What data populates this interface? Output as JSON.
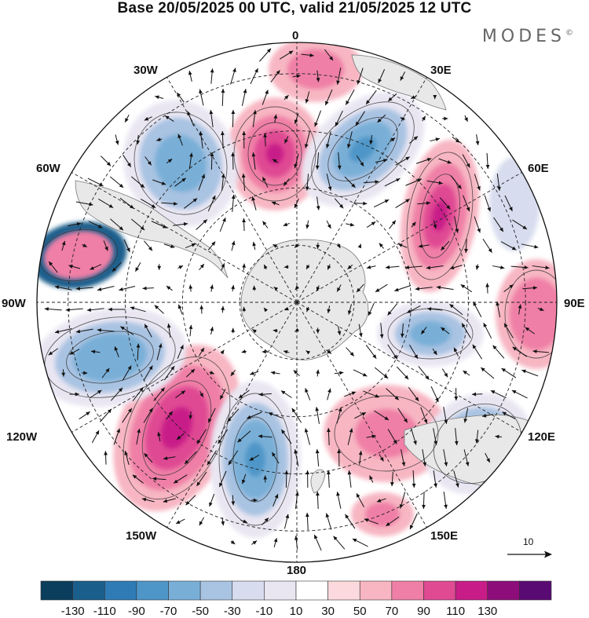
{
  "title": "Base 20/05/2025 00 UTC, valid 21/05/2025 12 UTC",
  "brand": "MODES",
  "brand_mark": "©",
  "longitude_labels": {
    "lon_0": "0",
    "lon_30e": "30E",
    "lon_60e": "60E",
    "lon_90e": "90E",
    "lon_120e": "120E",
    "lon_150e": "150E",
    "lon_180": "180",
    "lon_150w": "150W",
    "lon_120w": "120W",
    "lon_90w": "90W",
    "lon_60w": "60W",
    "lon_30w": "30W"
  },
  "reference_vector_label": "10",
  "colorbar": {
    "ticks": [
      "-130",
      "-110",
      "-90",
      "-70",
      "-50",
      "-30",
      "-10",
      "10",
      "30",
      "50",
      "70",
      "90",
      "110",
      "130"
    ],
    "colors": [
      "#0b3d5c",
      "#1a5e8c",
      "#2e7bb6",
      "#4f96c8",
      "#79afd7",
      "#a9c3e2",
      "#d7dcee",
      "#e9e6f2",
      "#ffffff",
      "#fbd9dc",
      "#f7b6c2",
      "#ef7fa6",
      "#df4a93",
      "#c81d88",
      "#8d0d7b",
      "#5a0a73"
    ]
  },
  "map_colors": {
    "land": "#e8e8e8",
    "coast": "#7a7a7a",
    "grid": "#222222",
    "arrow": "#111111"
  }
}
